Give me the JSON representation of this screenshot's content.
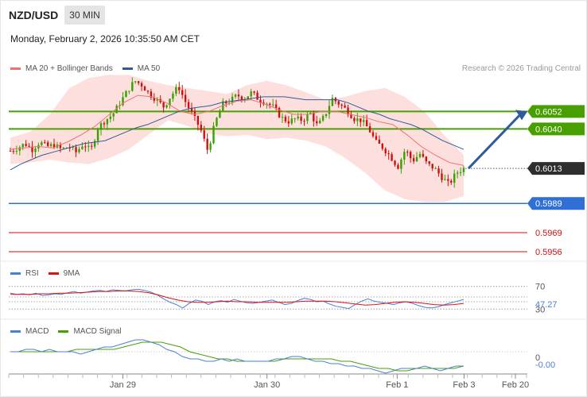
{
  "header": {
    "symbol": "NZD/USD",
    "timeframe": "30 MIN",
    "datetime": "Monday, February 2, 2026 10:35:50 AM CET",
    "credit": "Research © 2026 Trading Central"
  },
  "legends": {
    "price": [
      {
        "label": "MA 20 + Bollinger Bands",
        "color": "#f07070"
      },
      {
        "label": "MA 50",
        "color": "#2e5b9a"
      }
    ],
    "rsi": [
      {
        "label": "RSI",
        "color": "#4a7fd8"
      },
      {
        "label": "9MA",
        "color": "#e01010"
      }
    ],
    "macd": [
      {
        "label": "MACD",
        "color": "#4a7fd8"
      },
      {
        "label": "MACD Signal",
        "color": "#48a000"
      }
    ]
  },
  "colors": {
    "resistance": "#48a000",
    "current": "#2e2e2e",
    "support1": "#2f6fd6",
    "support_minor": "#cc1010",
    "bull_candle": "#38a000",
    "bear_candle": "#cc1010",
    "band_fill": "#fde0de",
    "arrow": "#2e5b9a"
  },
  "chart_data": [
    {
      "type": "candlestick",
      "panel": "price",
      "ylim": [
        0.595,
        0.6075
      ],
      "levels": [
        {
          "value": 0.6052,
          "label": "0.6052",
          "kind": "resistance"
        },
        {
          "value": 0.604,
          "label": "0.6040",
          "kind": "resistance"
        },
        {
          "value": 0.6013,
          "label": "0.6013",
          "kind": "current"
        },
        {
          "value": 0.5989,
          "label": "0.5989",
          "kind": "support1"
        },
        {
          "value": 0.5969,
          "label": "0.5969",
          "kind": "support_minor"
        },
        {
          "value": 0.5956,
          "label": "0.5956",
          "kind": "support_minor"
        }
      ],
      "close_path": [
        0.6025,
        0.6027,
        0.603,
        0.6026,
        0.6031,
        0.6028,
        0.6029,
        0.6026,
        0.6028,
        0.6024,
        0.603,
        0.6025,
        0.6041,
        0.6046,
        0.605,
        0.6058,
        0.6066,
        0.6073,
        0.607,
        0.6064,
        0.606,
        0.6055,
        0.6063,
        0.6069,
        0.6058,
        0.6049,
        0.604,
        0.6025,
        0.6044,
        0.6057,
        0.6059,
        0.6063,
        0.6061,
        0.6065,
        0.606,
        0.6058,
        0.6055,
        0.6048,
        0.6045,
        0.6047,
        0.6046,
        0.6051,
        0.6042,
        0.6049,
        0.6061,
        0.6057,
        0.6053,
        0.6047,
        0.6046,
        0.604,
        0.6031,
        0.6027,
        0.6021,
        0.6014,
        0.6026,
        0.6018,
        0.6023,
        0.6016,
        0.6013,
        0.6007,
        0.6002,
        0.601,
        0.6013
      ],
      "ma50_path": [
        0.6012,
        0.6016,
        0.6019,
        0.6022,
        0.6024,
        0.6026,
        0.6028,
        0.603,
        0.6031,
        0.6032,
        0.6035,
        0.6038,
        0.6041,
        0.6043,
        0.6046,
        0.6049,
        0.6052,
        0.6054,
        0.6055,
        0.6056,
        0.6058,
        0.6059,
        0.606,
        0.6061,
        0.6062,
        0.6062,
        0.6062,
        0.6061,
        0.606,
        0.606,
        0.606,
        0.606,
        0.6058,
        0.6055,
        0.6052,
        0.605,
        0.6047,
        0.6045,
        0.6043,
        0.604,
        0.6036,
        0.6032,
        0.6029,
        0.6026
      ],
      "ma20_path": [
        0.6026,
        0.6027,
        0.6028,
        0.6027,
        0.6031,
        0.6036,
        0.6042,
        0.605,
        0.6058,
        0.6063,
        0.6062,
        0.6058,
        0.6052,
        0.605,
        0.6052,
        0.6056,
        0.6059,
        0.606,
        0.6057,
        0.6053,
        0.605,
        0.605,
        0.6052,
        0.6052,
        0.605,
        0.6048,
        0.6045,
        0.6043,
        0.6036,
        0.6028,
        0.6022,
        0.6017,
        0.6015
      ],
      "band_upper": [
        0.6034,
        0.6038,
        0.605,
        0.6068,
        0.6075,
        0.6077,
        0.6077,
        0.6073,
        0.607,
        0.6068,
        0.6066,
        0.6064,
        0.607,
        0.6073,
        0.607,
        0.6065,
        0.606,
        0.6062,
        0.6066,
        0.6068,
        0.6062,
        0.6052,
        0.6036,
        0.6022
      ],
      "band_lower": [
        0.6016,
        0.6017,
        0.6019,
        0.6017,
        0.6016,
        0.602,
        0.6026,
        0.6036,
        0.6046,
        0.6042,
        0.6037,
        0.6035,
        0.6036,
        0.6033,
        0.6034,
        0.6032,
        0.6028,
        0.602,
        0.601,
        0.5998,
        0.5992,
        0.599,
        0.599,
        0.5994
      ]
    },
    {
      "type": "line",
      "panel": "rsi",
      "ylim": [
        15,
        85
      ],
      "ref_levels": [
        70,
        30
      ],
      "ticks": [
        "70",
        "30"
      ],
      "current_label": "47.27",
      "series": [
        {
          "name": "RSI",
          "values": [
            58,
            56,
            57,
            55,
            58,
            54,
            55,
            57,
            56,
            59,
            61,
            58,
            60,
            62,
            63,
            61,
            64,
            63,
            62,
            64,
            65,
            63,
            60,
            55,
            48,
            42,
            38,
            32,
            40,
            46,
            44,
            38,
            43,
            45,
            42,
            47,
            44,
            41,
            40,
            42,
            44,
            46,
            42,
            38,
            40,
            45,
            49,
            47,
            43,
            44,
            39,
            35,
            33,
            31,
            38,
            44,
            48,
            44,
            42,
            40,
            38,
            41,
            43,
            40,
            36,
            33,
            32,
            34,
            38,
            41,
            44,
            47
          ]
        },
        {
          "name": "9MA",
          "values": [
            56,
            56,
            56,
            57,
            57,
            58,
            58,
            59,
            60,
            61,
            61,
            62,
            62,
            61,
            59,
            55,
            50,
            46,
            43,
            42,
            42,
            43,
            44,
            43,
            43,
            42,
            42,
            42,
            42,
            43,
            44,
            44,
            44,
            43,
            41,
            39,
            37,
            38,
            40,
            42,
            43,
            42,
            40,
            38,
            37,
            38,
            40
          ]
        }
      ]
    },
    {
      "type": "line",
      "panel": "macd",
      "ylim": [
        -0.0009,
        0.0006
      ],
      "ticks": [
        "0"
      ],
      "current_label": "-0.00",
      "series": [
        {
          "name": "MACD",
          "values": [
            0.0,
            0.0,
            0.0001,
            0.0001,
            0.0,
            0.0001,
            0.0,
            0.0,
            0.0,
            -0.0001,
            0.0,
            0.0001,
            0.0002,
            0.0002,
            0.0003,
            0.0004,
            0.0005,
            0.0005,
            0.0004,
            0.0003,
            0.0001,
            0.0,
            -0.0002,
            -0.0003,
            -0.0003,
            -0.0004,
            -0.0004,
            -0.0003,
            -0.0004,
            -0.0003,
            -0.0004,
            -0.0004,
            -0.0004,
            -0.0004,
            -0.0003,
            -0.0003,
            -0.0002,
            -0.0002,
            -0.0003,
            -0.0004,
            -0.0004,
            -0.0005,
            -0.0005,
            -0.0006,
            -0.0006,
            -0.0007,
            -0.0007,
            -0.0008,
            -0.0009,
            -0.0008,
            -0.0007,
            -0.0007,
            -0.0007,
            -0.0006,
            -0.0007,
            -0.0008,
            -0.0007,
            -0.0006,
            -0.0006
          ]
        },
        {
          "name": "MACD Signal",
          "values": [
            0.0,
            0.0,
            0.0,
            0.0,
            0.0,
            0.0,
            0.0,
            0.0001,
            0.0001,
            0.0001,
            0.0001,
            0.0001,
            0.0002,
            0.0003,
            0.0004,
            0.0004,
            0.0004,
            0.0003,
            0.0002,
            0.0,
            -0.0001,
            -0.0002,
            -0.0003,
            -0.0003,
            -0.0004,
            -0.0004,
            -0.0004,
            -0.0004,
            -0.0004,
            -0.0003,
            -0.0003,
            -0.0003,
            -0.0003,
            -0.0003,
            -0.0003,
            -0.0004,
            -0.0004,
            -0.0005,
            -0.0006,
            -0.0007,
            -0.0007,
            -0.0008,
            -0.0008,
            -0.0007,
            -0.0007,
            -0.0007,
            -0.0007,
            -0.0007,
            -0.0006
          ]
        }
      ]
    }
  ],
  "x_axis": {
    "ticks": [
      {
        "label": "Jan 29",
        "pos": 0.22
      },
      {
        "label": "Jan 30",
        "pos": 0.498
      },
      {
        "label": "Feb 1",
        "pos": 0.749
      },
      {
        "label": "Feb 3",
        "pos": 0.878
      },
      {
        "label": "Feb 20",
        "pos": 0.977
      }
    ]
  }
}
